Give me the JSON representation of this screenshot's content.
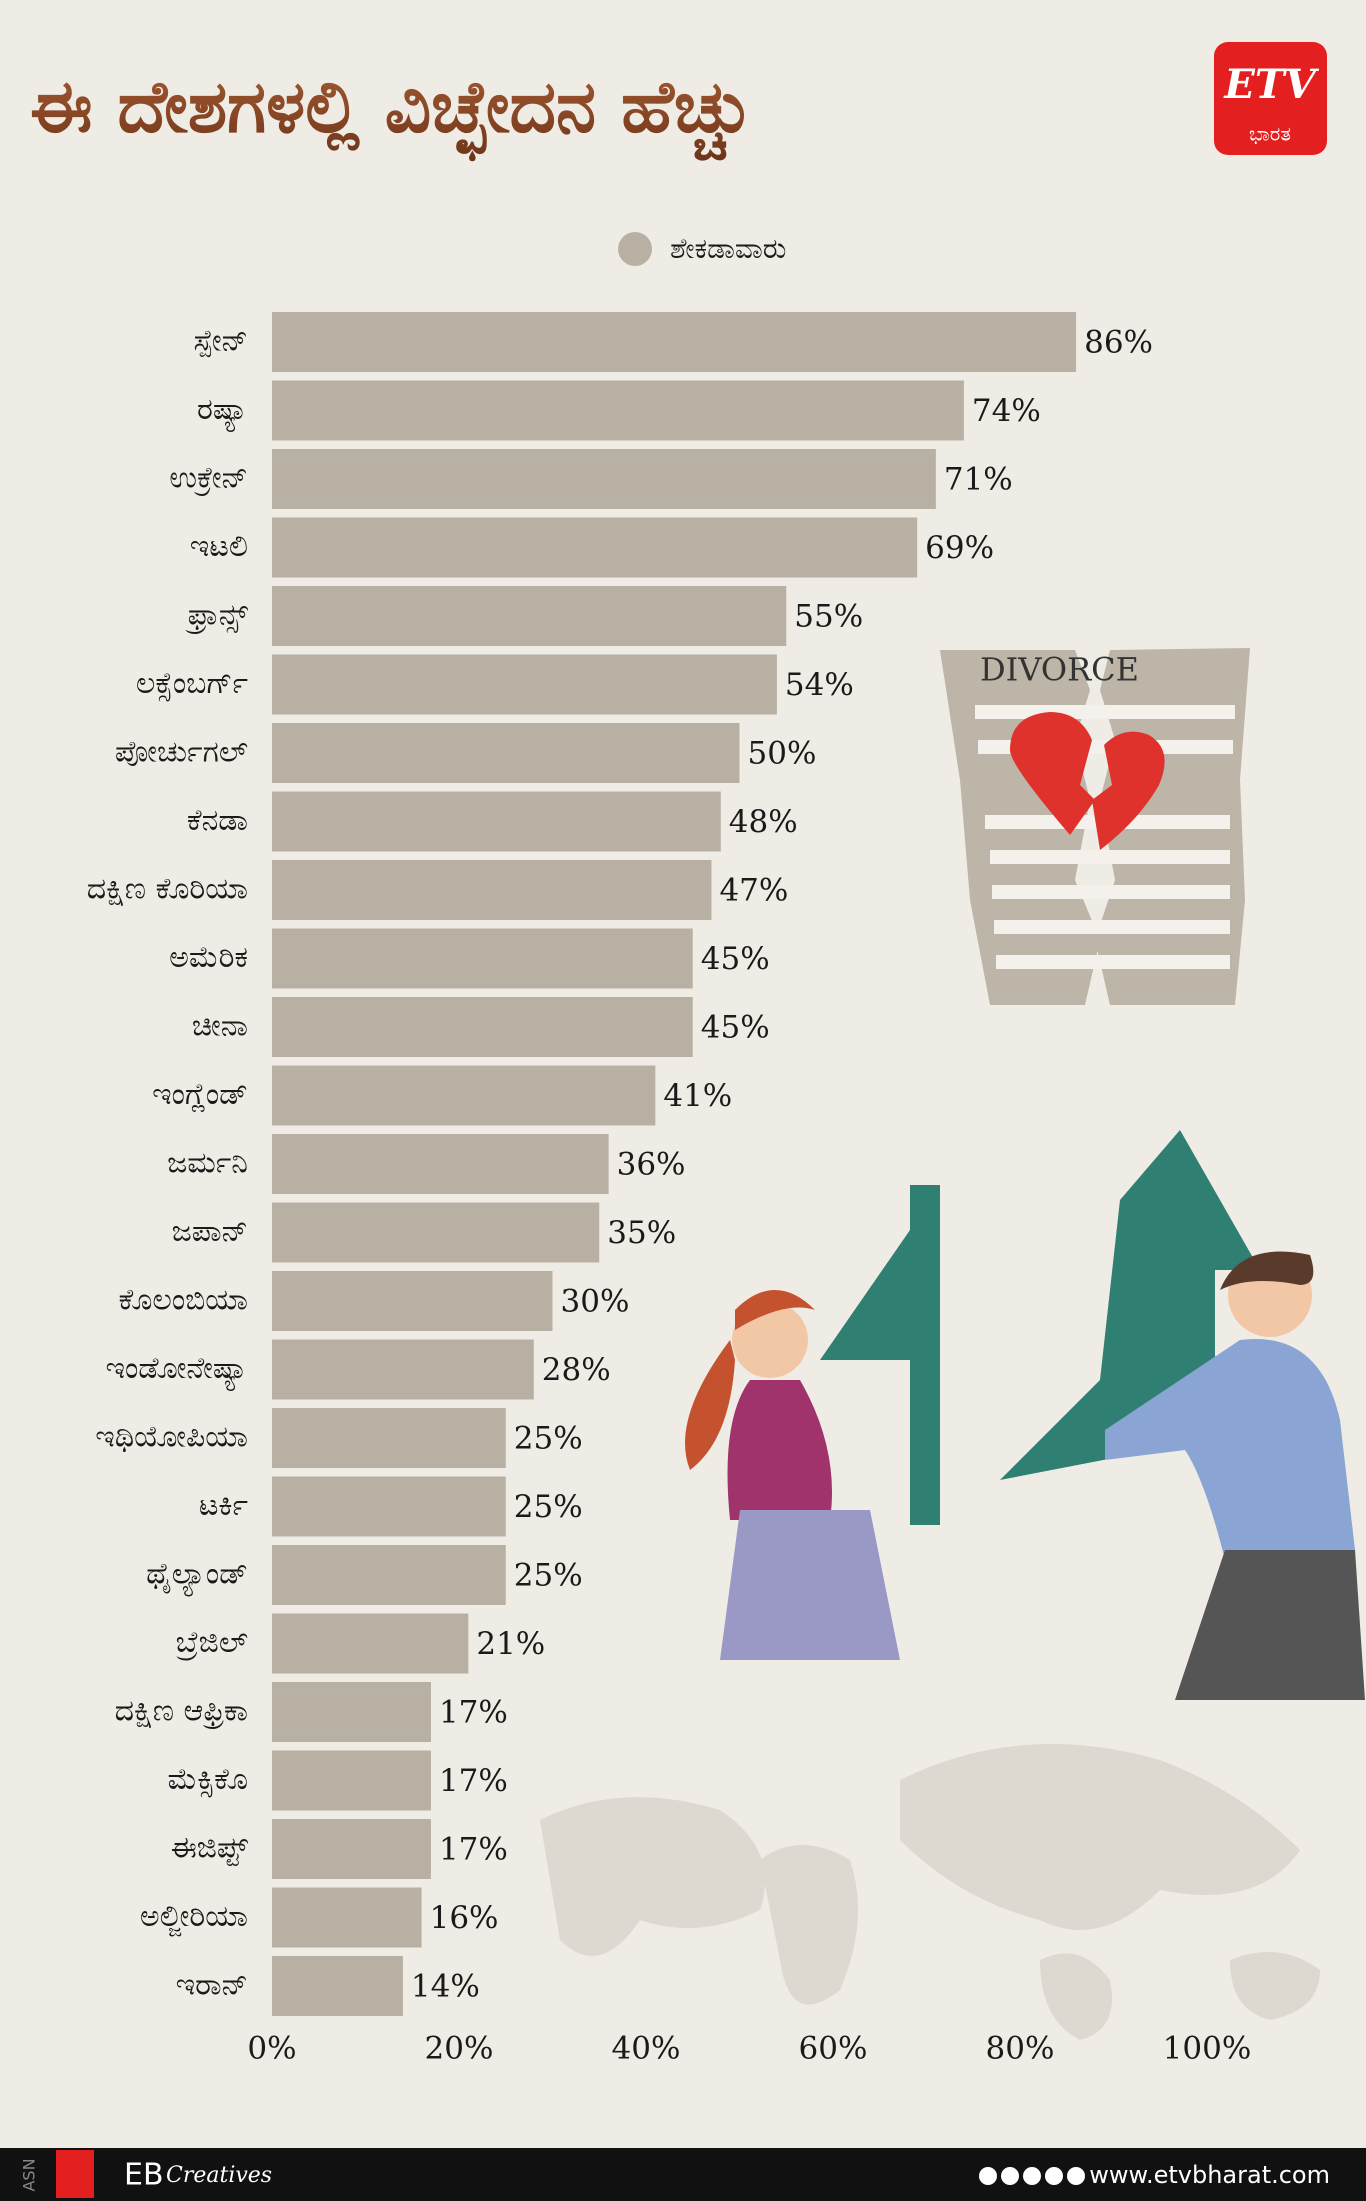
{
  "chart_data": {
    "type": "barh",
    "title": "ಈ ದೇಶಗಳಲ್ಲಿ ವಿಚ್ಛೇದನ ಹೆಚ್ಚು",
    "legend": "ಶೇಕಡಾವಾರು",
    "color": "#b8b0a3",
    "categories": [
      "ಸ್ಪೇನ್",
      "ರಷ್ಯಾ",
      "ಉಕ್ರೇನ್",
      "ಇಟಲಿ",
      "ಫ್ರಾನ್ಸ್",
      "ಲಕ್ಸೆಂಬರ್ಗ್",
      "ಪೋರ್ಚುಗಲ್",
      "ಕೆನಡಾ",
      "ದಕ್ಷಿಣ ಕೊರಿಯಾ",
      "ಅಮೆರಿಕ",
      "ಚೀನಾ",
      "ಇಂಗ್ಲೆಂಡ್",
      "ಜರ್ಮನಿ",
      "ಜಪಾನ್",
      "ಕೊಲಂಬಿಯಾ",
      "ಇಂಡೋನೇಷ್ಯಾ",
      "ಇಥಿಯೋಪಿಯಾ",
      "ಟರ್ಕಿ",
      "ಥೈಲ್ಯಾಂಡ್",
      "ಬ್ರೆಜಿಲ್",
      "ದಕ್ಷಿಣ ಆಫ್ರಿಕಾ",
      "ಮೆಕ್ಸಿಕೊ",
      "ಈಜಿಪ್ಟ್",
      "ಅಲ್ಜೀರಿಯಾ",
      "ಇರಾನ್"
    ],
    "values": [
      86,
      74,
      71,
      69,
      55,
      54,
      50,
      48,
      47,
      45,
      45,
      41,
      36,
      35,
      30,
      28,
      25,
      25,
      25,
      21,
      17,
      17,
      17,
      16,
      14
    ],
    "value_labels": [
      "86%",
      "74%",
      "71%",
      "69%",
      "55%",
      "54%",
      "50%",
      "48%",
      "47%",
      "45%",
      "45%",
      "41%",
      "36%",
      "35%",
      "30%",
      "28%",
      "25%",
      "25%",
      "25%",
      "21%",
      "17%",
      "17%",
      "17%",
      "16%",
      "14%"
    ],
    "xlim": [
      0,
      100
    ],
    "xticks": [
      {
        "value": 0,
        "label": "0%"
      },
      {
        "value": 20,
        "label": "20%"
      },
      {
        "value": 40,
        "label": "40%"
      },
      {
        "value": 60,
        "label": "60%"
      },
      {
        "value": 80,
        "label": "80%"
      },
      {
        "value": 100,
        "label": "100%"
      }
    ]
  },
  "illustration": "DIVORCE",
  "logo": {
    "brand": "ETV",
    "name": "ಭಾರತ"
  },
  "footer": {
    "code": "ASN",
    "eb": "EB",
    "creatives": "Creatives",
    "site": "www.etvbharat.com"
  }
}
